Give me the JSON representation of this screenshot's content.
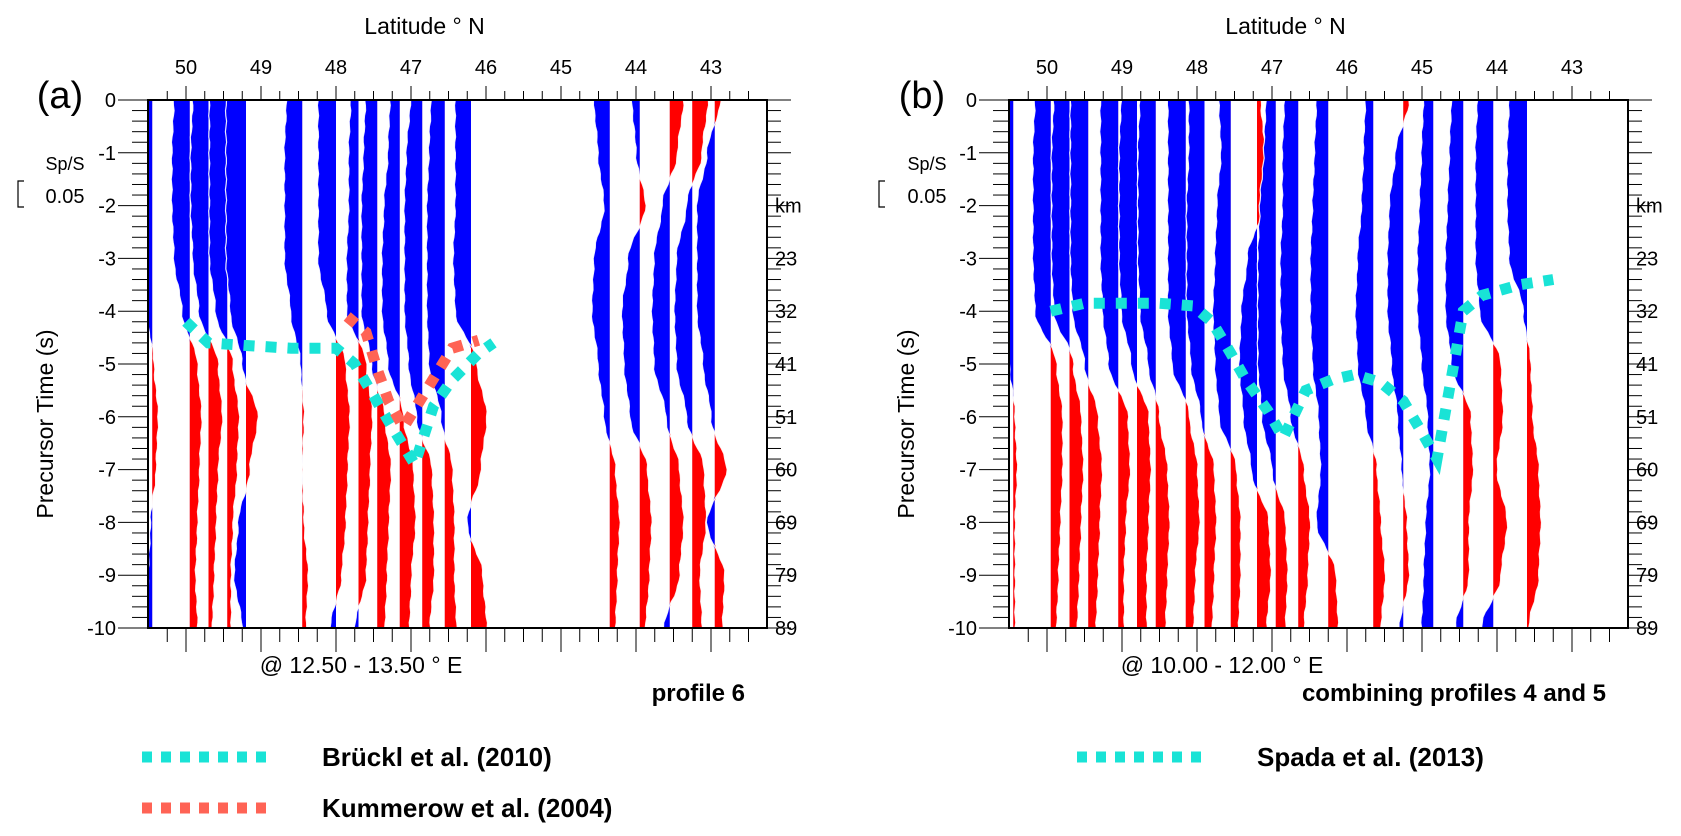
{
  "chart_data": [
    {
      "panel": "(a)",
      "type": "area",
      "subtype": "receiver-function wiggle traces (positive fill blue, negative fill red)",
      "title_top": "Latitude ° N",
      "xlabel_bottom": "@ 12.50 - 13.50 ° E",
      "ylabel": "Precursor Time (s)",
      "ylabel_right": "km",
      "x_ticks": [
        "50",
        "49",
        "48",
        "47",
        "46",
        "45",
        "44",
        "43"
      ],
      "xlim": [
        50.5,
        42.4
      ],
      "y_ticks": [
        "0",
        "-1",
        "-2",
        "-3",
        "-4",
        "-5",
        "-6",
        "-7",
        "-8",
        "-9",
        "-10"
      ],
      "ylim": [
        0,
        -10
      ],
      "right_ticks": [
        "23",
        "32",
        "41",
        "51",
        "60",
        "69",
        "79",
        "89"
      ],
      "right_tick_times": [
        -3,
        -4,
        -5,
        -6,
        -7,
        -8,
        -9,
        -10
      ],
      "scale_label": "Sp/S",
      "scale_value": "0.05",
      "profile_label": "profile 6",
      "colors": {
        "positive": "#0000ff",
        "negative": "#ff0000"
      },
      "traces": [
        {
          "lat": 50.45,
          "amp": [
            1,
            1,
            0.9,
            0.7,
            0.3,
            -0.1,
            -0.3,
            -0.2,
            0.1,
            0.2,
            0.3
          ]
        },
        {
          "lat": 49.95,
          "amp": [
            0.8,
            0.9,
            0.9,
            0.8,
            0.4,
            -0.4,
            -0.6,
            -0.5,
            -0.4,
            -0.3,
            -0.4
          ]
        },
        {
          "lat": 49.7,
          "amp": [
            0.8,
            0.9,
            0.9,
            0.8,
            0.5,
            -0.5,
            -0.7,
            -0.5,
            -0.4,
            -0.3,
            -0.2
          ]
        },
        {
          "lat": 49.45,
          "amp": [
            0.9,
            0.9,
            0.9,
            0.9,
            0.6,
            -0.3,
            -0.6,
            -0.5,
            -0.3,
            -0.2,
            -0.2
          ]
        },
        {
          "lat": 49.2,
          "amp": [
            1,
            1,
            1,
            1,
            0.8,
            0.2,
            -0.6,
            -0.2,
            0.4,
            0.6,
            0.2
          ]
        },
        {
          "lat": 48.45,
          "amp": [
            0.8,
            0.9,
            0.9,
            0.9,
            0.6,
            0.1,
            -0.1,
            0.0,
            -0.1,
            -0.3,
            -0.2
          ]
        },
        {
          "lat": 48.0,
          "amp": [
            0.9,
            0.9,
            0.9,
            0.9,
            0.5,
            -0.5,
            -0.7,
            -0.6,
            -0.5,
            -0.3,
            0.3
          ]
        },
        {
          "lat": 47.7,
          "amp": [
            0.4,
            0.5,
            0.5,
            0.6,
            0.6,
            -0.4,
            -0.7,
            -0.6,
            -0.5,
            -0.4,
            0.2
          ]
        },
        {
          "lat": 47.45,
          "amp": [
            0.6,
            0.7,
            0.8,
            0.8,
            0.8,
            0.3,
            -0.4,
            -0.7,
            -0.6,
            -0.5,
            -0.4
          ]
        },
        {
          "lat": 47.15,
          "amp": [
            0.5,
            0.6,
            0.8,
            0.9,
            0.9,
            0.6,
            -0.2,
            -0.7,
            -0.8,
            -0.6,
            -0.5
          ]
        },
        {
          "lat": 46.85,
          "amp": [
            0.6,
            0.8,
            0.9,
            0.9,
            0.9,
            0.7,
            0.3,
            -0.5,
            -0.6,
            -0.6,
            -0.4
          ]
        },
        {
          "lat": 46.55,
          "amp": [
            0.7,
            0.8,
            0.9,
            0.9,
            0.9,
            0.8,
            0.2,
            -0.4,
            -0.5,
            -0.5,
            -0.6
          ]
        },
        {
          "lat": 46.2,
          "amp": [
            0.8,
            0.8,
            0.8,
            0.9,
            0.8,
            -0.3,
            -0.8,
            -0.5,
            0.2,
            -0.6,
            -0.8
          ]
        },
        {
          "lat": 44.35,
          "amp": [
            0.8,
            0.6,
            0.3,
            0.8,
            0.9,
            0.6,
            0.3,
            -0.3,
            -0.5,
            -0.4,
            -0.3
          ]
        },
        {
          "lat": 43.95,
          "amp": [
            0.4,
            0.2,
            -0.3,
            0.6,
            0.9,
            0.8,
            0.5,
            -0.4,
            -0.6,
            -0.5,
            -0.3
          ]
        },
        {
          "lat": 43.55,
          "amp": [
            -0.7,
            -0.4,
            0.4,
            0.8,
            0.9,
            0.8,
            0.2,
            -0.5,
            -0.7,
            -0.5,
            0.3
          ]
        },
        {
          "lat": 43.25,
          "amp": [
            -0.8,
            -0.5,
            0.3,
            0.8,
            0.9,
            0.8,
            0.3,
            -0.6,
            -0.7,
            -0.4,
            -0.5
          ]
        },
        {
          "lat": 42.95,
          "amp": [
            -0.3,
            0.4,
            0.9,
            0.9,
            0.9,
            0.6,
            0.2,
            -0.6,
            0.4,
            -0.5,
            -0.4
          ]
        }
      ],
      "overlays": [
        {
          "name": "Brückl et al. (2010)",
          "color": "#19e3d6",
          "points": [
            [
              50.0,
              -4.2
            ],
            [
              49.7,
              -4.6
            ],
            [
              49.2,
              -4.65
            ],
            [
              48.6,
              -4.7
            ],
            [
              48.0,
              -4.7
            ],
            [
              47.75,
              -5.0
            ],
            [
              47.5,
              -5.6
            ],
            [
              47.25,
              -6.2
            ],
            [
              46.95,
              -6.9
            ],
            [
              46.7,
              -5.8
            ],
            [
              46.45,
              -5.3
            ],
            [
              46.1,
              -4.8
            ],
            [
              45.9,
              -4.6
            ]
          ]
        },
        {
          "name": "Kummerow et al. (2004)",
          "color": "#ff6355",
          "points": [
            [
              47.85,
              -4.1
            ],
            [
              47.6,
              -4.4
            ],
            [
              47.45,
              -5.1
            ],
            [
              47.3,
              -5.7
            ],
            [
              47.1,
              -6.2
            ],
            [
              46.45,
              -4.7
            ],
            [
              46.1,
              -4.55
            ]
          ]
        }
      ]
    },
    {
      "panel": "(b)",
      "type": "area",
      "subtype": "receiver-function wiggle traces (positive fill blue, negative fill red)",
      "title_top": "Latitude ° N",
      "xlabel_bottom": "@ 10.00 - 12.00 ° E",
      "ylabel": "Precursor Time (s)",
      "ylabel_right": "km",
      "x_ticks": [
        "50",
        "49",
        "48",
        "47",
        "46",
        "45",
        "44",
        "43"
      ],
      "xlim": [
        50.5,
        42.4
      ],
      "y_ticks": [
        "0",
        "-1",
        "-2",
        "-3",
        "-4",
        "-5",
        "-6",
        "-7",
        "-8",
        "-9",
        "-10"
      ],
      "ylim": [
        0,
        -10
      ],
      "right_ticks": [
        "23",
        "32",
        "41",
        "51",
        "60",
        "69",
        "79",
        "89"
      ],
      "right_tick_times": [
        -3,
        -4,
        -5,
        -6,
        -7,
        -8,
        -9,
        -10
      ],
      "scale_label": "Sp/S",
      "scale_value": "0.05",
      "profile_label": "combining profiles 4 and 5",
      "colors": {
        "positive": "#0000ff",
        "negative": "#ff0000"
      },
      "traces": [
        {
          "lat": 50.45,
          "amp": [
            1,
            1,
            1,
            0.9,
            0.6,
            0.2,
            -0.1,
            -0.2,
            -0.1,
            -0.1,
            -0.1
          ]
        },
        {
          "lat": 49.95,
          "amp": [
            0.8,
            0.9,
            0.9,
            0.9,
            0.8,
            -0.3,
            -0.6,
            -0.6,
            -0.5,
            -0.4,
            -0.3
          ]
        },
        {
          "lat": 49.7,
          "amp": [
            0.8,
            0.9,
            0.9,
            0.9,
            0.8,
            -0.2,
            -0.6,
            -0.7,
            -0.6,
            -0.5,
            -0.4
          ]
        },
        {
          "lat": 49.45,
          "amp": [
            0.9,
            0.9,
            0.9,
            0.9,
            0.8,
            0.2,
            -0.5,
            -0.7,
            -0.6,
            -0.5,
            -0.4
          ]
        },
        {
          "lat": 49.05,
          "amp": [
            0.9,
            0.9,
            0.9,
            0.9,
            0.8,
            0.5,
            -0.5,
            -0.6,
            -0.4,
            -0.3,
            -0.3
          ]
        },
        {
          "lat": 48.8,
          "amp": [
            0.8,
            0.9,
            0.9,
            0.9,
            0.8,
            0.3,
            -0.6,
            -0.7,
            -0.6,
            -0.5,
            -0.5
          ]
        },
        {
          "lat": 48.55,
          "amp": [
            0.8,
            0.9,
            0.9,
            0.9,
            0.8,
            0.4,
            -0.2,
            -0.6,
            -0.7,
            -0.6,
            -0.5
          ]
        },
        {
          "lat": 48.15,
          "amp": [
            0.9,
            0.9,
            0.9,
            0.9,
            0.9,
            0.7,
            -0.2,
            -0.6,
            -0.7,
            -0.5,
            -0.4
          ]
        },
        {
          "lat": 47.9,
          "amp": [
            0.8,
            0.8,
            0.9,
            0.9,
            0.9,
            0.7,
            0.2,
            -0.5,
            -0.6,
            -0.5,
            -0.4
          ]
        },
        {
          "lat": 47.55,
          "amp": [
            0.6,
            0.5,
            0.7,
            0.8,
            0.9,
            0.8,
            0.6,
            -0.3,
            -0.5,
            -0.5,
            -0.4
          ]
        },
        {
          "lat": 47.2,
          "amp": [
            -0.2,
            -0.4,
            -0.3,
            0.5,
            0.8,
            0.9,
            0.7,
            0.3,
            -0.6,
            -0.7,
            -0.5
          ]
        },
        {
          "lat": 46.95,
          "amp": [
            0.5,
            0.6,
            0.8,
            0.9,
            0.9,
            0.9,
            0.7,
            0.2,
            -0.5,
            -0.6,
            -0.5
          ]
        },
        {
          "lat": 46.65,
          "amp": [
            0.7,
            0.8,
            0.8,
            0.9,
            0.9,
            0.8,
            0.4,
            -0.3,
            -0.6,
            -0.5,
            -0.3
          ]
        },
        {
          "lat": 46.25,
          "amp": [
            0.6,
            0.7,
            0.8,
            0.9,
            0.9,
            0.8,
            0.5,
            0.4,
            0.6,
            -0.4,
            -0.5
          ]
        },
        {
          "lat": 45.65,
          "amp": [
            0.4,
            0.5,
            0.6,
            0.8,
            0.9,
            0.8,
            0.4,
            -0.2,
            -0.4,
            -0.6,
            -0.4
          ]
        },
        {
          "lat": 45.25,
          "amp": [
            -0.3,
            0.4,
            0.7,
            0.8,
            0.8,
            0.6,
            0.3,
            0.1,
            -0.2,
            -0.3,
            0.2
          ]
        },
        {
          "lat": 44.85,
          "amp": [
            0.5,
            0.6,
            0.7,
            0.8,
            0.8,
            0.6,
            0.3,
            0.2,
            0.4,
            0.5,
            0.6
          ]
        },
        {
          "lat": 44.45,
          "amp": [
            0.6,
            0.7,
            0.8,
            0.9,
            0.9,
            0.6,
            -0.4,
            -0.5,
            -0.3,
            -0.3,
            0.4
          ]
        },
        {
          "lat": 44.05,
          "amp": [
            0.8,
            0.9,
            0.9,
            0.9,
            0.7,
            -0.4,
            -0.5,
            -0.2,
            -0.7,
            -0.4,
            0.6
          ]
        },
        {
          "lat": 43.6,
          "amp": [
            0.9,
            1,
            1,
            0.9,
            0.2,
            -0.2,
            -0.3,
            -0.6,
            -0.7,
            -0.6,
            -0.1
          ]
        }
      ],
      "overlays": [
        {
          "name": "Spada et al. (2013)",
          "color": "#19e3d6",
          "points": [
            [
              49.95,
              -4.0
            ],
            [
              49.5,
              -3.85
            ],
            [
              49.0,
              -3.85
            ],
            [
              48.5,
              -3.85
            ],
            [
              48.05,
              -3.9
            ],
            [
              47.8,
              -4.2
            ],
            [
              47.55,
              -4.8
            ],
            [
              47.35,
              -5.3
            ],
            [
              47.05,
              -5.9
            ],
            [
              46.85,
              -6.4
            ],
            [
              46.55,
              -5.5
            ],
            [
              46.2,
              -5.3
            ],
            [
              45.9,
              -5.2
            ],
            [
              45.55,
              -5.35
            ],
            [
              45.25,
              -5.7
            ],
            [
              45.0,
              -6.3
            ],
            [
              44.8,
              -6.8
            ],
            [
              44.45,
              -4.0
            ],
            [
              44.2,
              -3.7
            ],
            [
              43.7,
              -3.5
            ],
            [
              43.25,
              -3.4
            ]
          ]
        }
      ]
    }
  ],
  "legends": {
    "a": [
      {
        "label": "Brückl et al. (2010)",
        "color": "#19e3d6"
      },
      {
        "label": "Kummerow et al. (2004)",
        "color": "#ff6355"
      }
    ],
    "b": [
      {
        "label": "Spada et al. (2013)",
        "color": "#19e3d6"
      }
    ]
  }
}
